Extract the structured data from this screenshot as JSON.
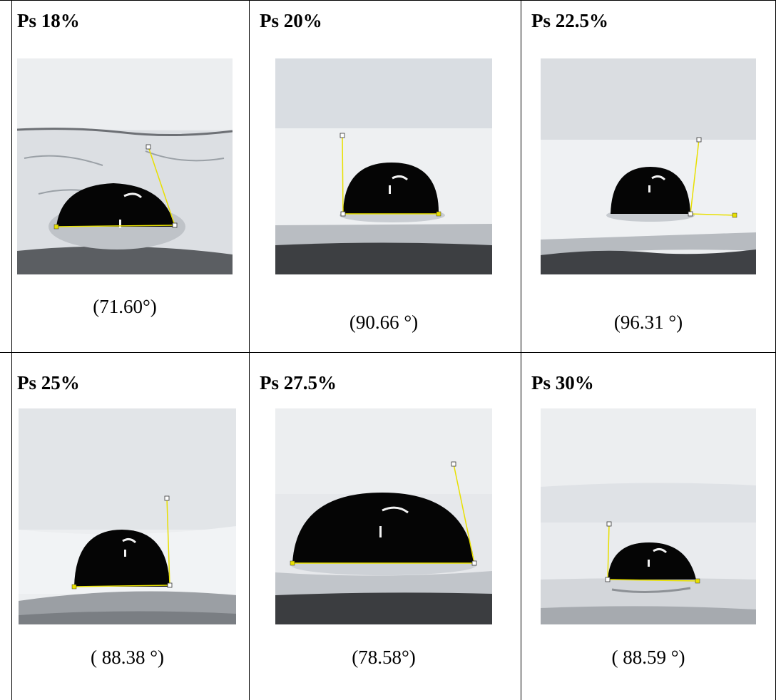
{
  "samples": [
    {
      "label": "Ps 18%",
      "caption": "(71.60°)",
      "contact_angle_deg": 71.6
    },
    {
      "label": "Ps 20%",
      "caption": "(90.66 °)",
      "contact_angle_deg": 90.66
    },
    {
      "label": "Ps 22.5%",
      "caption": "(96.31 °)",
      "contact_angle_deg": 96.31
    },
    {
      "label": "Ps 25%",
      "caption": "( 88.38 °)",
      "contact_angle_deg": 88.38
    },
    {
      "label": "Ps 27.5%",
      "caption": "(78.58°)",
      "contact_angle_deg": 78.58
    },
    {
      "label": "Ps 30%",
      "caption": "( 88.59 °)",
      "contact_angle_deg": 88.59
    }
  ],
  "colors": {
    "droplet": "#050505",
    "surface": "#e9ecef",
    "substrate_edge": "#3a3c3f",
    "measure_line": "#e8e000"
  }
}
